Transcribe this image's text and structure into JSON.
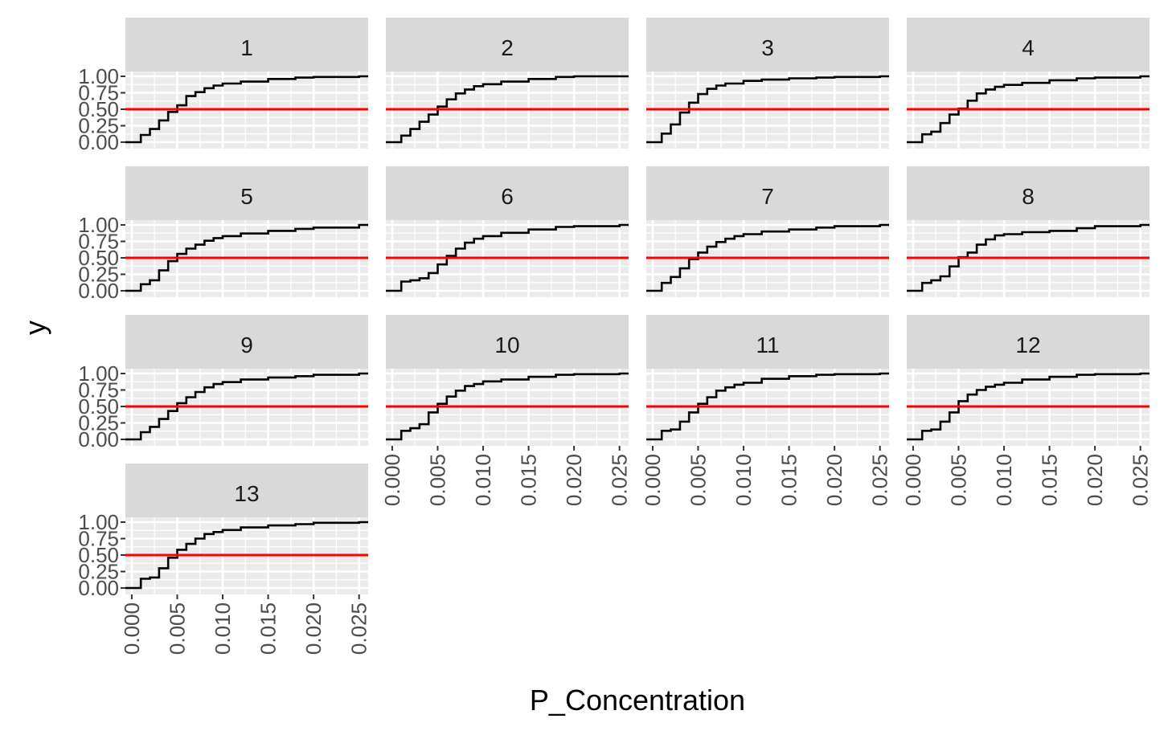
{
  "chart_data": {
    "type": "line",
    "layout": "facet_wrap",
    "ncol": 4,
    "xlabel": "P_Concentration",
    "ylabel": "y",
    "xlim": [
      -0.0007,
      0.026
    ],
    "ylim": [
      0,
      1
    ],
    "x_ticks": [
      0.0,
      0.005,
      0.01,
      0.015,
      0.02,
      0.025
    ],
    "x_tick_labels": [
      "0.000",
      "0.005",
      "0.010",
      "0.015",
      "0.020",
      "0.025"
    ],
    "y_ticks": [
      0,
      0.25,
      0.5,
      0.75,
      1
    ],
    "y_tick_labels": [
      "0.00",
      "0.25",
      "0.50",
      "0.75",
      "1.00"
    ],
    "reference_line": {
      "y": 0.5,
      "color": "#ff0000"
    },
    "series_color": "#000000",
    "panel_background": "#ebebeb",
    "strip_background": "#d9d9d9",
    "facets": [
      {
        "label": "1",
        "x": [
          -0.0007,
          0,
          0.001,
          0.002,
          0.003,
          0.004,
          0.005,
          0.006,
          0.007,
          0.008,
          0.009,
          0.01,
          0.012,
          0.015,
          0.018,
          0.02,
          0.025,
          0.026
        ],
        "y": [
          0,
          0,
          0.11,
          0.2,
          0.33,
          0.46,
          0.56,
          0.7,
          0.76,
          0.82,
          0.86,
          0.89,
          0.92,
          0.96,
          0.98,
          0.99,
          1.0,
          1.0
        ]
      },
      {
        "label": "2",
        "x": [
          -0.0007,
          0,
          0.001,
          0.002,
          0.003,
          0.004,
          0.005,
          0.006,
          0.007,
          0.008,
          0.009,
          0.01,
          0.012,
          0.015,
          0.018,
          0.02,
          0.025,
          0.026
        ],
        "y": [
          0,
          0,
          0.1,
          0.2,
          0.31,
          0.42,
          0.54,
          0.65,
          0.74,
          0.8,
          0.85,
          0.88,
          0.92,
          0.96,
          0.99,
          1.0,
          1.0,
          1.0
        ]
      },
      {
        "label": "3",
        "x": [
          -0.0007,
          0,
          0.001,
          0.002,
          0.003,
          0.004,
          0.005,
          0.006,
          0.007,
          0.008,
          0.01,
          0.012,
          0.015,
          0.018,
          0.02,
          0.025,
          0.026
        ],
        "y": [
          0,
          0,
          0.13,
          0.27,
          0.45,
          0.6,
          0.73,
          0.81,
          0.86,
          0.89,
          0.93,
          0.95,
          0.97,
          0.98,
          0.99,
          1.0,
          1.0
        ]
      },
      {
        "label": "4",
        "x": [
          -0.0007,
          0,
          0.001,
          0.002,
          0.003,
          0.004,
          0.005,
          0.006,
          0.007,
          0.008,
          0.009,
          0.01,
          0.012,
          0.015,
          0.018,
          0.02,
          0.025,
          0.026
        ],
        "y": [
          0,
          0,
          0.12,
          0.16,
          0.29,
          0.42,
          0.51,
          0.63,
          0.74,
          0.8,
          0.84,
          0.87,
          0.9,
          0.94,
          0.97,
          0.98,
          1.0,
          1.0
        ]
      },
      {
        "label": "5",
        "x": [
          -0.0007,
          0,
          0.001,
          0.002,
          0.003,
          0.004,
          0.005,
          0.006,
          0.007,
          0.008,
          0.009,
          0.01,
          0.012,
          0.015,
          0.018,
          0.02,
          0.025,
          0.026
        ],
        "y": [
          0,
          0,
          0.1,
          0.16,
          0.31,
          0.45,
          0.56,
          0.64,
          0.7,
          0.76,
          0.8,
          0.83,
          0.87,
          0.91,
          0.94,
          0.96,
          1.0,
          1.0
        ]
      },
      {
        "label": "6",
        "x": [
          -0.0007,
          0,
          0.001,
          0.002,
          0.003,
          0.004,
          0.005,
          0.006,
          0.007,
          0.008,
          0.009,
          0.01,
          0.012,
          0.015,
          0.018,
          0.02,
          0.025,
          0.026
        ],
        "y": [
          0,
          0,
          0.14,
          0.16,
          0.19,
          0.27,
          0.4,
          0.53,
          0.64,
          0.73,
          0.79,
          0.83,
          0.88,
          0.93,
          0.97,
          0.98,
          1.0,
          1.0
        ]
      },
      {
        "label": "7",
        "x": [
          -0.0007,
          0,
          0.001,
          0.002,
          0.003,
          0.004,
          0.005,
          0.006,
          0.007,
          0.008,
          0.009,
          0.01,
          0.012,
          0.015,
          0.018,
          0.02,
          0.025,
          0.026
        ],
        "y": [
          0,
          0,
          0.12,
          0.21,
          0.34,
          0.48,
          0.58,
          0.67,
          0.74,
          0.79,
          0.83,
          0.86,
          0.9,
          0.93,
          0.96,
          0.98,
          1.0,
          1.0
        ]
      },
      {
        "label": "8",
        "x": [
          -0.0007,
          0,
          0.001,
          0.002,
          0.003,
          0.004,
          0.005,
          0.006,
          0.007,
          0.008,
          0.009,
          0.01,
          0.012,
          0.015,
          0.018,
          0.02,
          0.025,
          0.026
        ],
        "y": [
          0,
          0,
          0.12,
          0.16,
          0.22,
          0.37,
          0.51,
          0.58,
          0.7,
          0.78,
          0.84,
          0.86,
          0.89,
          0.91,
          0.95,
          0.98,
          1.0,
          1.0
        ]
      },
      {
        "label": "9",
        "x": [
          -0.0007,
          0,
          0.001,
          0.002,
          0.003,
          0.004,
          0.005,
          0.006,
          0.007,
          0.008,
          0.009,
          0.01,
          0.012,
          0.015,
          0.018,
          0.02,
          0.025,
          0.026
        ],
        "y": [
          0,
          0,
          0.11,
          0.19,
          0.31,
          0.43,
          0.55,
          0.64,
          0.72,
          0.79,
          0.84,
          0.87,
          0.91,
          0.94,
          0.96,
          0.98,
          1.0,
          1.0
        ]
      },
      {
        "label": "10",
        "x": [
          -0.0007,
          0,
          0.001,
          0.002,
          0.003,
          0.004,
          0.005,
          0.006,
          0.007,
          0.008,
          0.009,
          0.01,
          0.012,
          0.015,
          0.018,
          0.02,
          0.025,
          0.026
        ],
        "y": [
          0,
          0,
          0.13,
          0.17,
          0.23,
          0.41,
          0.54,
          0.65,
          0.74,
          0.81,
          0.84,
          0.88,
          0.91,
          0.95,
          0.98,
          0.99,
          1.0,
          1.0
        ]
      },
      {
        "label": "11",
        "x": [
          -0.0007,
          0,
          0.001,
          0.002,
          0.003,
          0.004,
          0.005,
          0.006,
          0.007,
          0.008,
          0.009,
          0.01,
          0.012,
          0.015,
          0.018,
          0.02,
          0.025,
          0.026
        ],
        "y": [
          0,
          0,
          0.13,
          0.15,
          0.27,
          0.41,
          0.54,
          0.64,
          0.74,
          0.79,
          0.83,
          0.86,
          0.92,
          0.96,
          0.98,
          0.99,
          1.0,
          1.0
        ]
      },
      {
        "label": "12",
        "x": [
          -0.0007,
          0,
          0.001,
          0.002,
          0.003,
          0.004,
          0.005,
          0.006,
          0.007,
          0.008,
          0.009,
          0.01,
          0.012,
          0.015,
          0.018,
          0.02,
          0.025,
          0.026
        ],
        "y": [
          0,
          0,
          0.13,
          0.15,
          0.27,
          0.41,
          0.58,
          0.68,
          0.75,
          0.8,
          0.83,
          0.86,
          0.91,
          0.95,
          0.98,
          0.99,
          1.0,
          1.0
        ]
      },
      {
        "label": "13",
        "x": [
          -0.0007,
          0,
          0.001,
          0.002,
          0.003,
          0.004,
          0.005,
          0.006,
          0.007,
          0.008,
          0.009,
          0.01,
          0.012,
          0.015,
          0.018,
          0.02,
          0.025,
          0.026
        ],
        "y": [
          0,
          0,
          0.14,
          0.16,
          0.3,
          0.46,
          0.58,
          0.67,
          0.75,
          0.82,
          0.85,
          0.88,
          0.92,
          0.95,
          0.97,
          0.99,
          1.0,
          1.0
        ]
      }
    ]
  }
}
